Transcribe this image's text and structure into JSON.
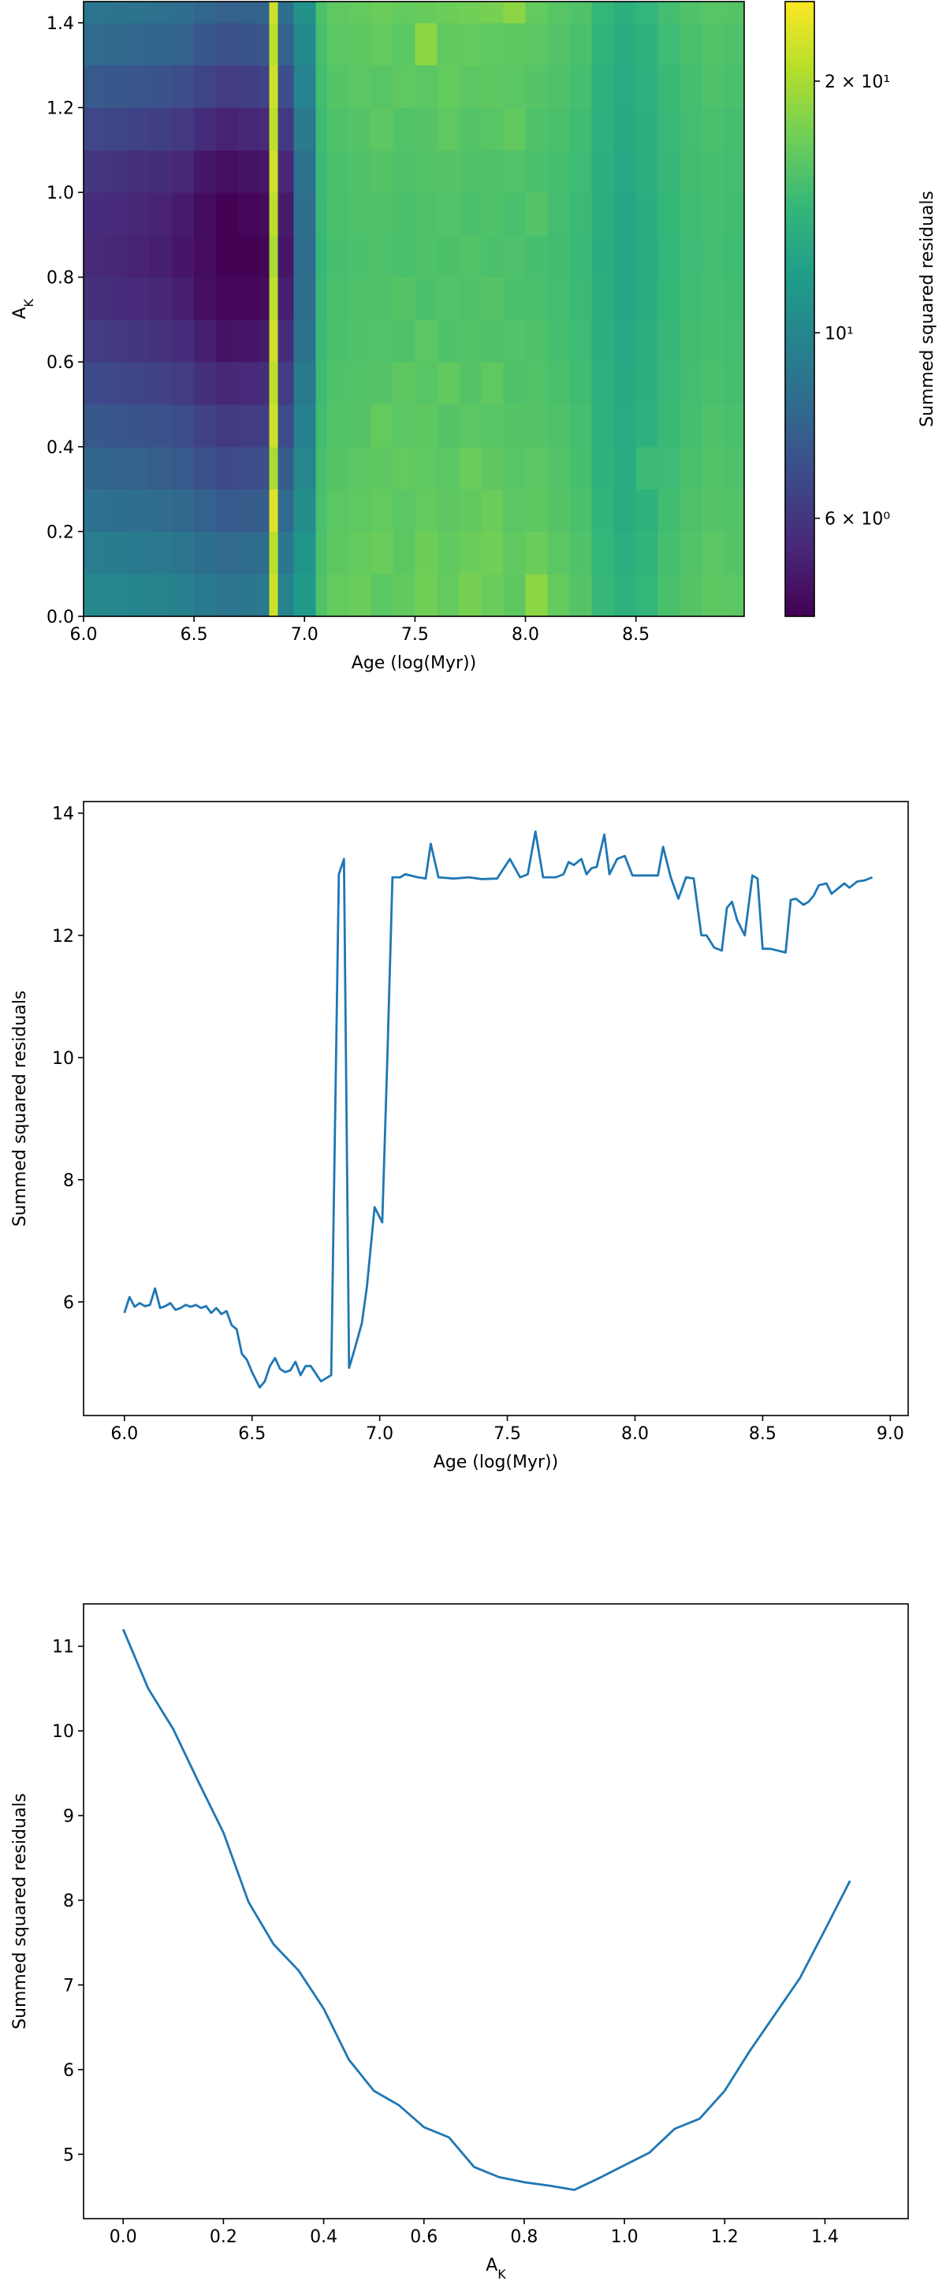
{
  "chart_data": [
    {
      "type": "heatmap",
      "colormap": "viridis",
      "xlabel": "Age (log(Myr))",
      "ylabel": {
        "base": "A",
        "sub": "K"
      },
      "colorbar_label": "Summed squared residuals",
      "log_color": true,
      "xbins": [
        6.0,
        6.1,
        6.2,
        6.3,
        6.4,
        6.5,
        6.6,
        6.7,
        6.8,
        6.84,
        6.88,
        6.95,
        7.05,
        7.1,
        7.2,
        7.3,
        7.4,
        7.5,
        7.6,
        7.7,
        7.8,
        7.9,
        8.0,
        8.1,
        8.2,
        8.3,
        8.4,
        8.5,
        8.6,
        8.7,
        8.8,
        8.9,
        8.99
      ],
      "ybins": [
        0.0,
        0.1,
        0.2,
        0.3,
        0.4,
        0.5,
        0.6,
        0.7,
        0.8,
        0.9,
        1.0,
        1.1,
        1.2,
        1.3,
        1.4,
        1.45
      ],
      "z": [
        [
          10.1,
          10.0,
          9.9,
          9.8,
          9.6,
          9.2,
          8.9,
          9.0,
          9.1,
          22,
          9.8,
          11.5,
          15.5,
          16.5,
          16.8,
          16.0,
          16.4,
          17.2,
          16.6,
          17.5,
          16.8,
          16.2,
          18.5,
          16.5,
          15.8,
          14.2,
          13.5,
          14.0,
          15.2,
          15.8,
          16.2,
          16.0
        ],
        [
          9.4,
          9.3,
          9.2,
          9.1,
          8.9,
          8.5,
          8.2,
          8.3,
          8.4,
          21,
          9.0,
          11.0,
          15.3,
          16.2,
          16.5,
          16.8,
          16.1,
          17.0,
          16.4,
          16.9,
          17.2,
          16.3,
          16.8,
          16.0,
          15.5,
          14.0,
          13.2,
          13.8,
          15.0,
          15.6,
          16.0,
          15.8
        ],
        [
          8.6,
          8.5,
          8.4,
          8.3,
          8.1,
          7.7,
          7.4,
          7.5,
          7.6,
          23,
          8.2,
          10.5,
          15.2,
          16.0,
          16.3,
          16.5,
          16.0,
          16.6,
          16.2,
          16.4,
          16.8,
          16.0,
          16.2,
          15.8,
          15.3,
          13.8,
          13.0,
          13.6,
          14.8,
          15.4,
          15.8,
          15.6
        ],
        [
          7.9,
          7.8,
          7.7,
          7.6,
          7.4,
          7.0,
          6.7,
          6.8,
          6.9,
          20,
          7.5,
          10.0,
          15.0,
          15.8,
          16.0,
          16.2,
          16.5,
          16.3,
          16.0,
          16.8,
          16.2,
          15.9,
          16.0,
          15.6,
          15.1,
          13.6,
          12.9,
          14.5,
          14.6,
          15.2,
          15.6,
          15.4
        ],
        [
          7.3,
          7.2,
          7.1,
          7.0,
          6.8,
          6.4,
          6.1,
          6.2,
          6.3,
          22,
          6.8,
          9.6,
          14.8,
          15.6,
          15.8,
          16.5,
          16.0,
          16.2,
          15.8,
          16.0,
          15.9,
          15.7,
          15.8,
          15.4,
          15.0,
          13.5,
          12.8,
          13.4,
          14.4,
          15.0,
          15.4,
          15.2
        ],
        [
          6.7,
          6.6,
          6.5,
          6.4,
          6.2,
          5.8,
          5.5,
          5.6,
          5.7,
          21,
          6.2,
          9.2,
          14.6,
          15.5,
          15.6,
          15.8,
          16.2,
          15.9,
          16.4,
          15.8,
          16.3,
          15.5,
          15.6,
          15.2,
          14.8,
          13.4,
          12.7,
          13.3,
          14.3,
          14.9,
          15.2,
          15.0
        ],
        [
          6.2,
          6.1,
          6.0,
          5.9,
          5.7,
          5.3,
          5.0,
          5.1,
          5.2,
          22,
          5.7,
          8.8,
          14.5,
          15.3,
          15.5,
          15.6,
          15.4,
          16.1,
          15.5,
          15.6,
          15.4,
          15.6,
          15.4,
          15.0,
          14.6,
          13.3,
          12.6,
          13.2,
          14.2,
          14.8,
          15.1,
          14.9
        ],
        [
          5.8,
          5.7,
          5.6,
          5.5,
          5.3,
          4.9,
          4.7,
          4.7,
          4.8,
          21,
          5.3,
          8.5,
          14.4,
          15.2,
          15.4,
          15.5,
          15.7,
          15.3,
          15.6,
          15.4,
          15.8,
          15.3,
          15.2,
          14.9,
          14.5,
          13.2,
          12.5,
          13.1,
          14.1,
          14.7,
          15.0,
          14.8
        ],
        [
          5.6,
          5.5,
          5.4,
          5.3,
          5.1,
          4.8,
          4.6,
          4.6,
          4.7,
          20,
          5.1,
          8.4,
          14.3,
          15.1,
          15.3,
          15.4,
          15.2,
          15.5,
          15.3,
          15.6,
          15.3,
          15.4,
          15.1,
          14.8,
          14.4,
          13.1,
          12.5,
          13.0,
          14.0,
          14.6,
          14.9,
          14.7
        ],
        [
          5.7,
          5.6,
          5.5,
          5.4,
          5.2,
          4.8,
          4.6,
          4.7,
          4.8,
          21,
          5.2,
          8.5,
          14.4,
          15.2,
          15.4,
          15.5,
          15.3,
          15.4,
          15.6,
          15.3,
          15.5,
          15.2,
          15.8,
          14.9,
          14.5,
          13.2,
          12.5,
          13.1,
          14.1,
          14.7,
          15.0,
          14.8
        ],
        [
          6.0,
          5.9,
          5.8,
          5.7,
          5.5,
          5.1,
          4.9,
          5.0,
          5.1,
          22,
          5.5,
          8.7,
          14.5,
          15.3,
          15.5,
          15.7,
          15.4,
          15.6,
          15.8,
          15.5,
          15.4,
          15.6,
          15.3,
          15.0,
          14.6,
          13.3,
          12.6,
          13.2,
          14.2,
          14.8,
          15.1,
          14.9
        ],
        [
          6.6,
          6.5,
          6.4,
          6.3,
          6.1,
          5.7,
          5.4,
          5.5,
          5.6,
          21,
          6.1,
          9.1,
          14.6,
          15.5,
          15.7,
          16.2,
          15.6,
          15.8,
          16.3,
          15.7,
          15.9,
          16.4,
          15.5,
          15.2,
          14.8,
          13.4,
          12.7,
          13.3,
          14.3,
          14.9,
          15.2,
          15.0
        ],
        [
          7.4,
          7.3,
          7.2,
          7.1,
          6.9,
          6.5,
          6.2,
          6.3,
          6.4,
          22,
          6.9,
          9.7,
          14.8,
          15.7,
          16.0,
          15.9,
          16.3,
          16.0,
          16.5,
          16.1,
          16.2,
          16.0,
          15.8,
          15.4,
          15.0,
          13.5,
          12.8,
          13.4,
          14.4,
          15.0,
          15.4,
          15.2
        ],
        [
          8.2,
          8.1,
          8.0,
          7.9,
          7.7,
          7.3,
          7.0,
          7.1,
          7.2,
          21,
          7.8,
          10.2,
          15.0,
          16.0,
          16.2,
          16.5,
          16.0,
          18.5,
          16.4,
          16.6,
          16.3,
          16.2,
          16.0,
          15.6,
          15.2,
          13.7,
          13.0,
          13.6,
          14.6,
          15.2,
          15.6,
          15.4
        ],
        [
          8.9,
          8.8,
          8.7,
          8.6,
          8.4,
          8.0,
          7.7,
          7.8,
          7.9,
          22,
          8.5,
          10.8,
          15.3,
          16.3,
          16.6,
          16.8,
          16.5,
          16.7,
          17.0,
          17.2,
          17.5,
          18.5,
          16.5,
          15.9,
          15.5,
          14.0,
          13.3,
          13.9,
          14.9,
          15.5,
          15.9,
          15.7
        ]
      ],
      "xlim": [
        6.0,
        8.99
      ],
      "ylim": [
        0.0,
        1.45
      ],
      "clim": [
        4.58,
        24.9
      ],
      "xticks": [
        {
          "value": 6.0,
          "label": "6.0"
        },
        {
          "value": 6.5,
          "label": "6.5"
        },
        {
          "value": 7.0,
          "label": "7.0"
        },
        {
          "value": 7.5,
          "label": "7.5"
        },
        {
          "value": 8.0,
          "label": "8.0"
        },
        {
          "value": 8.5,
          "label": "8.5"
        }
      ],
      "yticks": [
        {
          "value": 0.0,
          "label": "0.0"
        },
        {
          "value": 0.2,
          "label": "0.2"
        },
        {
          "value": 0.4,
          "label": "0.4"
        },
        {
          "value": 0.6,
          "label": "0.6"
        },
        {
          "value": 0.8,
          "label": "0.8"
        },
        {
          "value": 1.0,
          "label": "1.0"
        },
        {
          "value": 1.2,
          "label": "1.2"
        },
        {
          "value": 1.4,
          "label": "1.4"
        }
      ],
      "cticks": [
        {
          "value": 6,
          "label": "6 × 10⁰"
        },
        {
          "value": 10,
          "label": "10¹"
        },
        {
          "value": 20,
          "label": "2 × 10¹"
        }
      ]
    },
    {
      "type": "line",
      "xlabel": "Age (log(Myr))",
      "ylabel": "Summed squared residuals",
      "color": "#1f77b4",
      "x": [
        6.0,
        6.02,
        6.04,
        6.06,
        6.08,
        6.1,
        6.12,
        6.14,
        6.16,
        6.18,
        6.2,
        6.22,
        6.24,
        6.26,
        6.28,
        6.3,
        6.32,
        6.34,
        6.36,
        6.38,
        6.4,
        6.42,
        6.44,
        6.46,
        6.48,
        6.5,
        6.53,
        6.55,
        6.57,
        6.59,
        6.61,
        6.63,
        6.65,
        6.67,
        6.69,
        6.71,
        6.73,
        6.77,
        6.81,
        6.84,
        6.86,
        6.88,
        6.9,
        6.93,
        6.95,
        6.98,
        7.01,
        7.03,
        7.05,
        7.08,
        7.1,
        7.15,
        7.18,
        7.2,
        7.23,
        7.29,
        7.35,
        7.4,
        7.46,
        7.51,
        7.55,
        7.58,
        7.61,
        7.64,
        7.69,
        7.72,
        7.74,
        7.76,
        7.79,
        7.81,
        7.83,
        7.85,
        7.88,
        7.9,
        7.93,
        7.96,
        7.99,
        8.03,
        8.09,
        8.11,
        8.14,
        8.17,
        8.2,
        8.23,
        8.26,
        8.28,
        8.31,
        8.34,
        8.36,
        8.38,
        8.4,
        8.43,
        8.46,
        8.48,
        8.5,
        8.53,
        8.59,
        8.61,
        8.63,
        8.66,
        8.68,
        8.7,
        8.72,
        8.75,
        8.77,
        8.79,
        8.82,
        8.84,
        8.87,
        8.9,
        8.93
      ],
      "values": [
        5.82,
        6.08,
        5.92,
        5.98,
        5.93,
        5.95,
        6.22,
        5.9,
        5.93,
        5.98,
        5.87,
        5.9,
        5.95,
        5.92,
        5.95,
        5.9,
        5.93,
        5.82,
        5.9,
        5.8,
        5.85,
        5.62,
        5.55,
        5.15,
        5.05,
        4.85,
        4.6,
        4.7,
        4.95,
        5.08,
        4.9,
        4.85,
        4.88,
        5.02,
        4.8,
        4.95,
        4.95,
        4.7,
        4.8,
        13.0,
        13.25,
        4.92,
        5.2,
        5.65,
        6.25,
        7.55,
        7.3,
        10.0,
        12.95,
        12.95,
        13.0,
        12.95,
        12.93,
        13.5,
        12.95,
        12.93,
        12.95,
        12.92,
        12.93,
        13.25,
        12.95,
        13.0,
        13.7,
        12.95,
        12.95,
        13.0,
        13.2,
        13.15,
        13.25,
        13.0,
        13.1,
        13.12,
        13.65,
        13.0,
        13.25,
        13.3,
        12.98,
        12.98,
        12.98,
        13.45,
        12.95,
        12.6,
        12.95,
        12.93,
        12.0,
        12.0,
        11.8,
        11.75,
        12.45,
        12.55,
        12.25,
        12.0,
        12.98,
        12.93,
        11.78,
        11.78,
        11.72,
        12.58,
        12.6,
        12.5,
        12.55,
        12.65,
        12.82,
        12.85,
        12.68,
        12.75,
        12.85,
        12.78,
        12.88,
        12.9,
        12.95
      ],
      "xlim": [
        5.84,
        9.07
      ],
      "ylim": [
        4.14,
        14.19
      ],
      "xticks": [
        {
          "value": 6.0,
          "label": "6.0"
        },
        {
          "value": 6.5,
          "label": "6.5"
        },
        {
          "value": 7.0,
          "label": "7.0"
        },
        {
          "value": 7.5,
          "label": "7.5"
        },
        {
          "value": 8.0,
          "label": "8.0"
        },
        {
          "value": 8.5,
          "label": "8.5"
        },
        {
          "value": 9.0,
          "label": "9.0"
        }
      ],
      "yticks": [
        6,
        8,
        10,
        12,
        14
      ]
    },
    {
      "type": "line",
      "xlabel": {
        "base": "A",
        "sub": "K"
      },
      "ylabel": "Summed squared residuals",
      "color": "#1f77b4",
      "x": [
        0.0,
        0.05,
        0.1,
        0.15,
        0.2,
        0.25,
        0.3,
        0.35,
        0.4,
        0.45,
        0.5,
        0.55,
        0.6,
        0.65,
        0.7,
        0.75,
        0.8,
        0.85,
        0.9,
        0.95,
        1.0,
        1.05,
        1.1,
        1.15,
        1.2,
        1.25,
        1.3,
        1.35,
        1.4,
        1.45
      ],
      "values": [
        11.2,
        10.5,
        10.02,
        9.4,
        8.8,
        7.98,
        7.48,
        7.17,
        6.72,
        6.12,
        5.75,
        5.58,
        5.32,
        5.2,
        4.85,
        4.73,
        4.67,
        4.63,
        4.58,
        4.72,
        4.87,
        5.02,
        5.3,
        5.42,
        5.75,
        6.22,
        6.65,
        7.08,
        7.65,
        8.23
      ],
      "xlim": [
        -0.079,
        1.566
      ],
      "ylim": [
        4.24,
        11.5
      ],
      "xticks": [
        {
          "value": 0.0,
          "label": "0.0"
        },
        {
          "value": 0.2,
          "label": "0.2"
        },
        {
          "value": 0.4,
          "label": "0.4"
        },
        {
          "value": 0.6,
          "label": "0.6"
        },
        {
          "value": 0.8,
          "label": "0.8"
        },
        {
          "value": 1.0,
          "label": "1.0"
        },
        {
          "value": 1.2,
          "label": "1.2"
        },
        {
          "value": 1.4,
          "label": "1.4"
        }
      ],
      "yticks": [
        5,
        6,
        7,
        8,
        9,
        10,
        11
      ]
    }
  ]
}
